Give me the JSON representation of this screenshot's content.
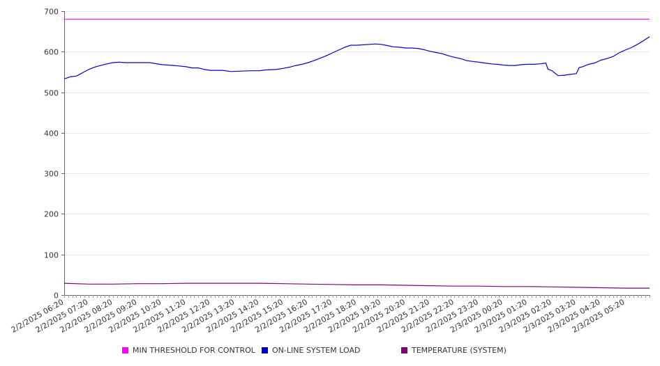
{
  "chart_data": {
    "type": "line",
    "title": "",
    "xlabel": "",
    "ylabel": "",
    "ylim": [
      0,
      700
    ],
    "yticks": [
      0,
      100,
      200,
      300,
      400,
      500,
      600,
      700
    ],
    "x_start": "2/2/2025 06:20",
    "x_end": "2/3/2025 06:20",
    "xtick_labels": [
      "2/2/2025 06:20",
      "2/2/2025 07:20",
      "2/2/2025 08:20",
      "2/2/2025 09:20",
      "2/2/2025 10:20",
      "2/2/2025 11:20",
      "2/2/2025 12:20",
      "2/2/2025 13:20",
      "2/2/2025 14:20",
      "2/2/2025 15:20",
      "2/2/2025 16:20",
      "2/2/2025 17:20",
      "2/2/2025 18:20",
      "2/2/2025 19:20",
      "2/2/2025 20:20",
      "2/2/2025 21:20",
      "2/2/2025 22:20",
      "2/2/2025 23:20",
      "2/3/2025 00:20",
      "2/3/2025 01:20",
      "2/3/2025 02:20",
      "2/3/2025 03:20",
      "2/3/2025 04:20",
      "2/3/2025 05:20"
    ],
    "grid": true,
    "legend_position": "bottom",
    "series": [
      {
        "name": "MIN THRESHOLD FOR CONTROL",
        "color": "#ff00ff",
        "points": [
          [
            "2/2/2025 06:20",
            680
          ],
          [
            "2/3/2025 06:20",
            680
          ]
        ]
      },
      {
        "name": "ON-LINE SYSTEM LOAD",
        "color": "#0000cc",
        "points": [
          [
            "2/2/2025 06:20",
            533
          ],
          [
            "2/2/2025 06:35",
            538
          ],
          [
            "2/2/2025 06:50",
            540
          ],
          [
            "2/2/2025 07:05",
            548
          ],
          [
            "2/2/2025 07:20",
            556
          ],
          [
            "2/2/2025 07:35",
            562
          ],
          [
            "2/2/2025 07:50",
            566
          ],
          [
            "2/2/2025 08:05",
            570
          ],
          [
            "2/2/2025 08:20",
            573
          ],
          [
            "2/2/2025 08:35",
            574
          ],
          [
            "2/2/2025 08:50",
            573
          ],
          [
            "2/2/2025 09:20",
            573
          ],
          [
            "2/2/2025 09:50",
            573
          ],
          [
            "2/2/2025 10:20",
            568
          ],
          [
            "2/2/2025 10:50",
            566
          ],
          [
            "2/2/2025 11:20",
            563
          ],
          [
            "2/2/2025 11:35",
            560
          ],
          [
            "2/2/2025 11:50",
            560
          ],
          [
            "2/2/2025 12:05",
            556
          ],
          [
            "2/2/2025 12:20",
            554
          ],
          [
            "2/2/2025 12:50",
            554
          ],
          [
            "2/2/2025 13:10",
            551
          ],
          [
            "2/2/2025 13:30",
            552
          ],
          [
            "2/2/2025 14:00",
            553
          ],
          [
            "2/2/2025 14:20",
            553
          ],
          [
            "2/2/2025 14:35",
            555
          ],
          [
            "2/2/2025 15:00",
            556
          ],
          [
            "2/2/2025 15:20",
            559
          ],
          [
            "2/2/2025 15:35",
            562
          ],
          [
            "2/2/2025 15:50",
            566
          ],
          [
            "2/2/2025 16:05",
            569
          ],
          [
            "2/2/2025 16:20",
            573
          ],
          [
            "2/2/2025 16:35",
            578
          ],
          [
            "2/2/2025 16:50",
            584
          ],
          [
            "2/2/2025 17:05",
            590
          ],
          [
            "2/2/2025 17:20",
            597
          ],
          [
            "2/2/2025 17:35",
            604
          ],
          [
            "2/2/2025 17:50",
            611
          ],
          [
            "2/2/2025 18:05",
            616
          ],
          [
            "2/2/2025 18:20",
            616
          ],
          [
            "2/2/2025 18:35",
            617
          ],
          [
            "2/2/2025 18:50",
            618
          ],
          [
            "2/2/2025 19:05",
            619
          ],
          [
            "2/2/2025 19:20",
            618
          ],
          [
            "2/2/2025 19:35",
            615
          ],
          [
            "2/2/2025 19:50",
            612
          ],
          [
            "2/2/2025 20:05",
            611
          ],
          [
            "2/2/2025 20:20",
            609
          ],
          [
            "2/2/2025 20:35",
            609
          ],
          [
            "2/2/2025 20:50",
            608
          ],
          [
            "2/2/2025 21:05",
            605
          ],
          [
            "2/2/2025 21:20",
            601
          ],
          [
            "2/2/2025 21:35",
            598
          ],
          [
            "2/2/2025 21:50",
            595
          ],
          [
            "2/2/2025 22:05",
            590
          ],
          [
            "2/2/2025 22:20",
            586
          ],
          [
            "2/2/2025 22:35",
            583
          ],
          [
            "2/2/2025 22:50",
            578
          ],
          [
            "2/2/2025 23:05",
            576
          ],
          [
            "2/2/2025 23:20",
            574
          ],
          [
            "2/2/2025 23:35",
            572
          ],
          [
            "2/2/2025 23:50",
            570
          ],
          [
            "2/3/2025 00:05",
            569
          ],
          [
            "2/3/2025 00:20",
            567
          ],
          [
            "2/3/2025 00:35",
            566
          ],
          [
            "2/3/2025 00:50",
            566
          ],
          [
            "2/3/2025 01:05",
            568
          ],
          [
            "2/3/2025 01:20",
            569
          ],
          [
            "2/3/2025 01:35",
            569
          ],
          [
            "2/3/2025 01:50",
            570
          ],
          [
            "2/3/2025 02:05",
            572
          ],
          [
            "2/3/2025 02:10",
            557
          ],
          [
            "2/3/2025 02:20",
            553
          ],
          [
            "2/3/2025 02:35",
            541
          ],
          [
            "2/3/2025 02:50",
            542
          ],
          [
            "2/3/2025 03:05",
            544
          ],
          [
            "2/3/2025 03:20",
            546
          ],
          [
            "2/3/2025 03:27",
            561
          ],
          [
            "2/3/2025 03:35",
            563
          ],
          [
            "2/3/2025 03:50",
            569
          ],
          [
            "2/3/2025 04:05",
            572
          ],
          [
            "2/3/2025 04:20",
            579
          ],
          [
            "2/3/2025 04:35",
            583
          ],
          [
            "2/3/2025 04:50",
            588
          ],
          [
            "2/3/2025 05:05",
            597
          ],
          [
            "2/3/2025 05:20",
            604
          ],
          [
            "2/3/2025 05:35",
            610
          ],
          [
            "2/3/2025 05:50",
            618
          ],
          [
            "2/3/2025 06:05",
            627
          ],
          [
            "2/3/2025 06:20",
            637
          ]
        ]
      },
      {
        "name": "TEMPERATURE (SYSTEM)",
        "color": "#800080",
        "points": [
          [
            "2/2/2025 06:20",
            29
          ],
          [
            "2/2/2025 07:20",
            27
          ],
          [
            "2/2/2025 08:20",
            27
          ],
          [
            "2/2/2025 09:20",
            28
          ],
          [
            "2/2/2025 10:20",
            28
          ],
          [
            "2/2/2025 11:20",
            29
          ],
          [
            "2/2/2025 12:20",
            29
          ],
          [
            "2/2/2025 13:20",
            29
          ],
          [
            "2/2/2025 14:20",
            29
          ],
          [
            "2/2/2025 15:20",
            28
          ],
          [
            "2/2/2025 16:20",
            27
          ],
          [
            "2/2/2025 17:20",
            26
          ],
          [
            "2/2/2025 18:20",
            25
          ],
          [
            "2/2/2025 19:20",
            25
          ],
          [
            "2/2/2025 20:20",
            24
          ],
          [
            "2/2/2025 21:20",
            23
          ],
          [
            "2/2/2025 22:20",
            22
          ],
          [
            "2/2/2025 23:20",
            22
          ],
          [
            "2/3/2025 00:20",
            21
          ],
          [
            "2/3/2025 01:20",
            21
          ],
          [
            "2/3/2025 02:20",
            20
          ],
          [
            "2/3/2025 03:20",
            19
          ],
          [
            "2/3/2025 04:20",
            18
          ],
          [
            "2/3/2025 05:20",
            17
          ],
          [
            "2/3/2025 06:20",
            17
          ]
        ]
      }
    ]
  }
}
